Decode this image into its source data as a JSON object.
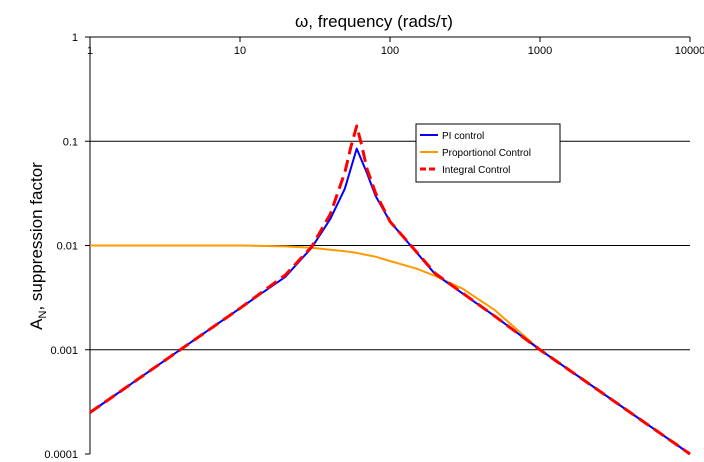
{
  "chart_data": {
    "type": "line",
    "title": "",
    "xlabel": "ω, frequency (rads/τ)",
    "ylabel": "A",
    "ylabel_sub": "N",
    "ylabel_rest": ", suppression factor",
    "x_scale": "log",
    "y_scale": "log",
    "xlim": [
      1,
      10000
    ],
    "ylim": [
      0.0001,
      1
    ],
    "x_ticks": [
      1,
      10,
      100,
      1000,
      10000
    ],
    "x_tick_labels": [
      "1",
      "10",
      "100",
      "1000",
      "10000"
    ],
    "y_ticks": [
      0.0001,
      0.001,
      0.01,
      0.1,
      1
    ],
    "y_tick_labels": [
      "0.0001",
      "0.001",
      "0.01",
      "0.1",
      "1"
    ],
    "grid": "horizontal",
    "legend_position": "top-right",
    "series": [
      {
        "name": "PI control",
        "color": "#0000ff",
        "dash": "solid",
        "x": [
          1,
          2,
          5,
          10,
          20,
          30,
          40,
          50,
          60,
          70,
          80,
          100,
          200,
          500,
          1000,
          2000,
          5000,
          10000
        ],
        "y": [
          0.00025,
          0.0005,
          0.00125,
          0.0025,
          0.005,
          0.0095,
          0.018,
          0.035,
          0.085,
          0.05,
          0.03,
          0.017,
          0.0053,
          0.0021,
          0.001,
          0.0005,
          0.0002,
          0.0001
        ]
      },
      {
        "name": "Proportionol Control",
        "color": "#ff9900",
        "dash": "solid",
        "x": [
          1,
          2,
          5,
          10,
          20,
          30,
          40,
          50,
          60,
          70,
          80,
          100,
          150,
          200,
          300,
          500,
          1000,
          2000,
          5000,
          10000
        ],
        "y": [
          0.01,
          0.01,
          0.01,
          0.01,
          0.0098,
          0.0095,
          0.0091,
          0.0088,
          0.0085,
          0.0081,
          0.0078,
          0.0071,
          0.006,
          0.0051,
          0.0039,
          0.0024,
          0.001,
          0.0005,
          0.0002,
          0.0001
        ]
      },
      {
        "name": "Integral Control",
        "color": "#ff0000",
        "dash": "dashed",
        "x": [
          1,
          2,
          5,
          10,
          20,
          30,
          40,
          50,
          55,
          60,
          65,
          70,
          80,
          100,
          200,
          500,
          1000,
          2000,
          5000,
          10000
        ],
        "y": [
          0.00025,
          0.0005,
          0.00125,
          0.0025,
          0.0052,
          0.0097,
          0.02,
          0.05,
          0.09,
          0.14,
          0.09,
          0.055,
          0.032,
          0.017,
          0.0054,
          0.0021,
          0.001,
          0.0005,
          0.0002,
          0.0001
        ]
      }
    ]
  }
}
